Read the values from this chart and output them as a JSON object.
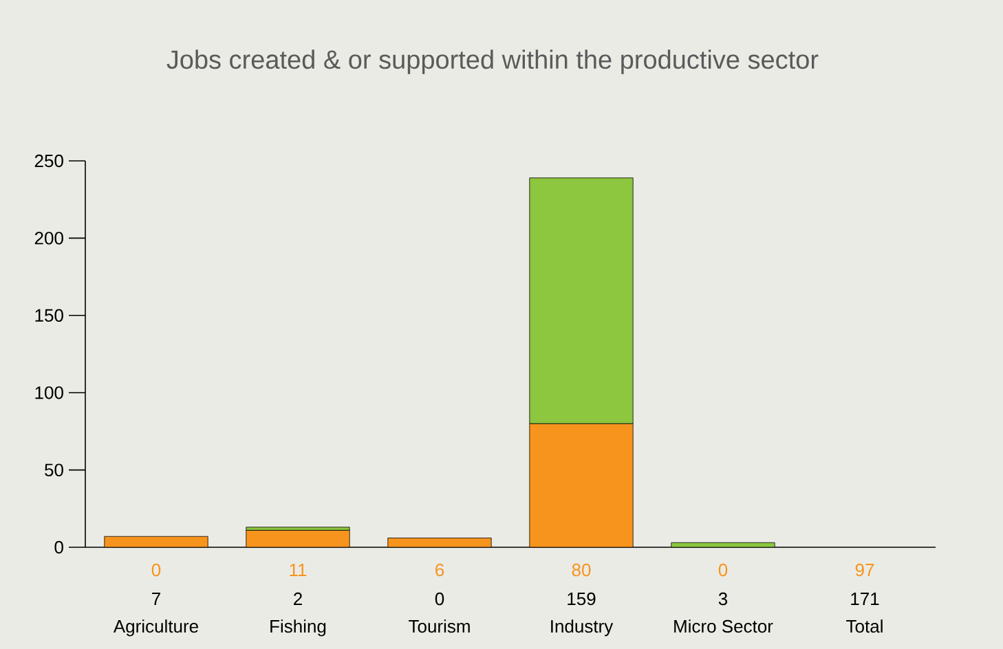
{
  "chart_data": {
    "type": "bar",
    "title": "Jobs created & or supported within the productive sector",
    "stacked": true,
    "categories": [
      "Agriculture",
      "Fishing",
      "Tourism",
      "Industry",
      "Micro Sector",
      "Total"
    ],
    "series": [
      {
        "color": "#f7941d",
        "values": [
          0,
          11,
          6,
          80,
          0,
          null
        ],
        "value_labels": [
          "0",
          "11",
          "6",
          "80",
          "0",
          "97"
        ]
      },
      {
        "color": "#8dc63f",
        "colors": [
          "#f7941d",
          "#8dc63f",
          "#8dc63f",
          "#8dc63f",
          "#8dc63f",
          "#8dc63f"
        ],
        "values": [
          7,
          2,
          0,
          159,
          3,
          null
        ],
        "value_labels": [
          "7",
          "2",
          "0",
          "159",
          "3",
          "171"
        ]
      }
    ],
    "ylim": [
      0,
      250
    ],
    "yticks": [
      0,
      50,
      100,
      150,
      200,
      250
    ],
    "grid": false
  }
}
